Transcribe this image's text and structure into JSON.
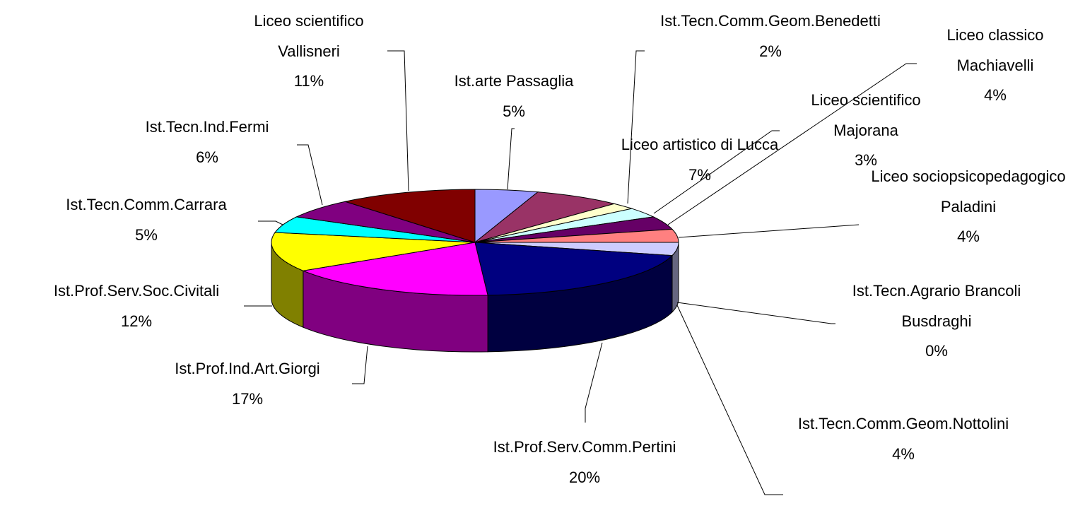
{
  "chart_data": {
    "type": "pie",
    "categories": [
      "Ist.arte Passaglia",
      "Liceo artistico di Lucca",
      "Ist.Tecn.Comm.Geom.Benedetti",
      "Liceo scientifico Majorana",
      "Liceo classico Machiavelli",
      "Liceo sociopsicopedagogico Paladini",
      "Ist.Tecn.Agrario Brancoli Busdraghi",
      "Ist.Tecn.Comm.Geom.Nottolini",
      "Ist.Prof.Serv.Comm.Pertini",
      "Ist.Prof.Ind.Art.Giorgi",
      "Ist.Prof.Serv.Soc.Civitali",
      "Ist.Tecn.Comm.Carrara",
      "Ist.Tecn.Ind.Fermi",
      "Liceo scientifico Vallisneri"
    ],
    "values": [
      5,
      7,
      2,
      3,
      4,
      4,
      0,
      4,
      20,
      17,
      12,
      5,
      6,
      11
    ],
    "value_labels": [
      "5%",
      "7%",
      "2%",
      "3%",
      "4%",
      "4%",
      "0%",
      "4%",
      "20%",
      "17%",
      "12%",
      "5%",
      "6%",
      "11%"
    ],
    "colors": [
      "#9999ff",
      "#993366",
      "#ffffcc",
      "#ccffff",
      "#660066",
      "#ff8080",
      "#0066cc",
      "#ccccff",
      "#000080",
      "#ff00ff",
      "#ffff00",
      "#00ffff",
      "#800080",
      "#800000"
    ]
  }
}
